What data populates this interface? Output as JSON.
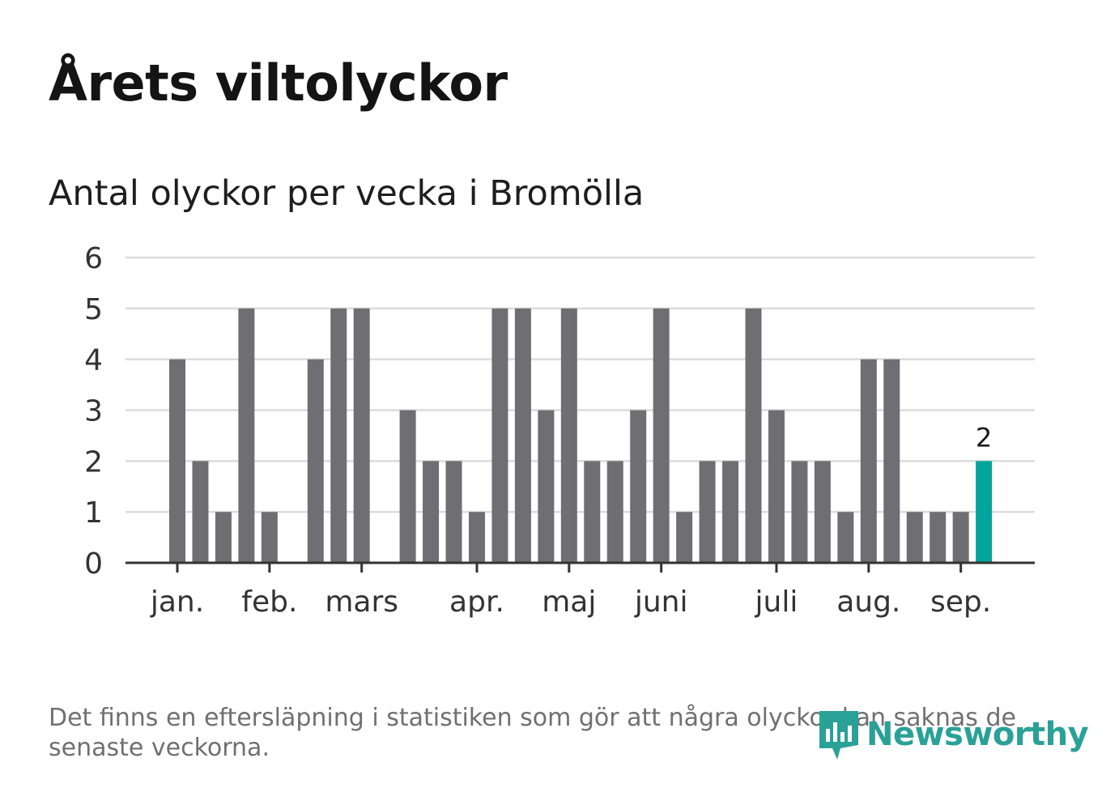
{
  "title": "Årets viltolyckor",
  "subtitle": "Antal olyckor per vecka i Bromölla",
  "footnote": "Det finns en eftersläpning i statistiken som gör att några olyckor kan saknas de senaste veckorna.",
  "logo": {
    "text": "Newsworthy",
    "icon": "newsworthy-logo-icon",
    "color": "#2aa197"
  },
  "colors": {
    "bar": "#6f6e73",
    "highlight": "#00a49b",
    "grid": "#dcdcdc",
    "axis": "#333333"
  },
  "chart_data": {
    "type": "bar",
    "title": "Antal olyckor per vecka i Bromölla",
    "xlabel": "",
    "ylabel": "",
    "ylim": [
      0,
      6
    ],
    "yticks": [
      "0",
      "1",
      "2",
      "3",
      "4",
      "5",
      "6"
    ],
    "grid": true,
    "month_labels": [
      "jan.",
      "feb.",
      "mars",
      "apr.",
      "maj",
      "juni",
      "juli",
      "aug.",
      "sep."
    ],
    "month_label_weeks": [
      1,
      5,
      9,
      14,
      18,
      22,
      27,
      31,
      35
    ],
    "weeks": [
      1,
      2,
      3,
      4,
      5,
      6,
      7,
      8,
      9,
      10,
      11,
      12,
      13,
      14,
      15,
      16,
      17,
      18,
      19,
      20,
      21,
      22,
      23,
      24,
      25,
      26,
      27,
      28,
      29,
      30,
      31,
      32,
      33,
      34,
      35,
      36
    ],
    "values": [
      4,
      2,
      1,
      5,
      1,
      0,
      4,
      5,
      5,
      0,
      3,
      2,
      2,
      1,
      5,
      5,
      3,
      5,
      2,
      2,
      3,
      5,
      1,
      2,
      2,
      5,
      3,
      2,
      2,
      1,
      4,
      4,
      1,
      1,
      1,
      2
    ],
    "highlight_week": 36,
    "highlight_label": "2"
  }
}
